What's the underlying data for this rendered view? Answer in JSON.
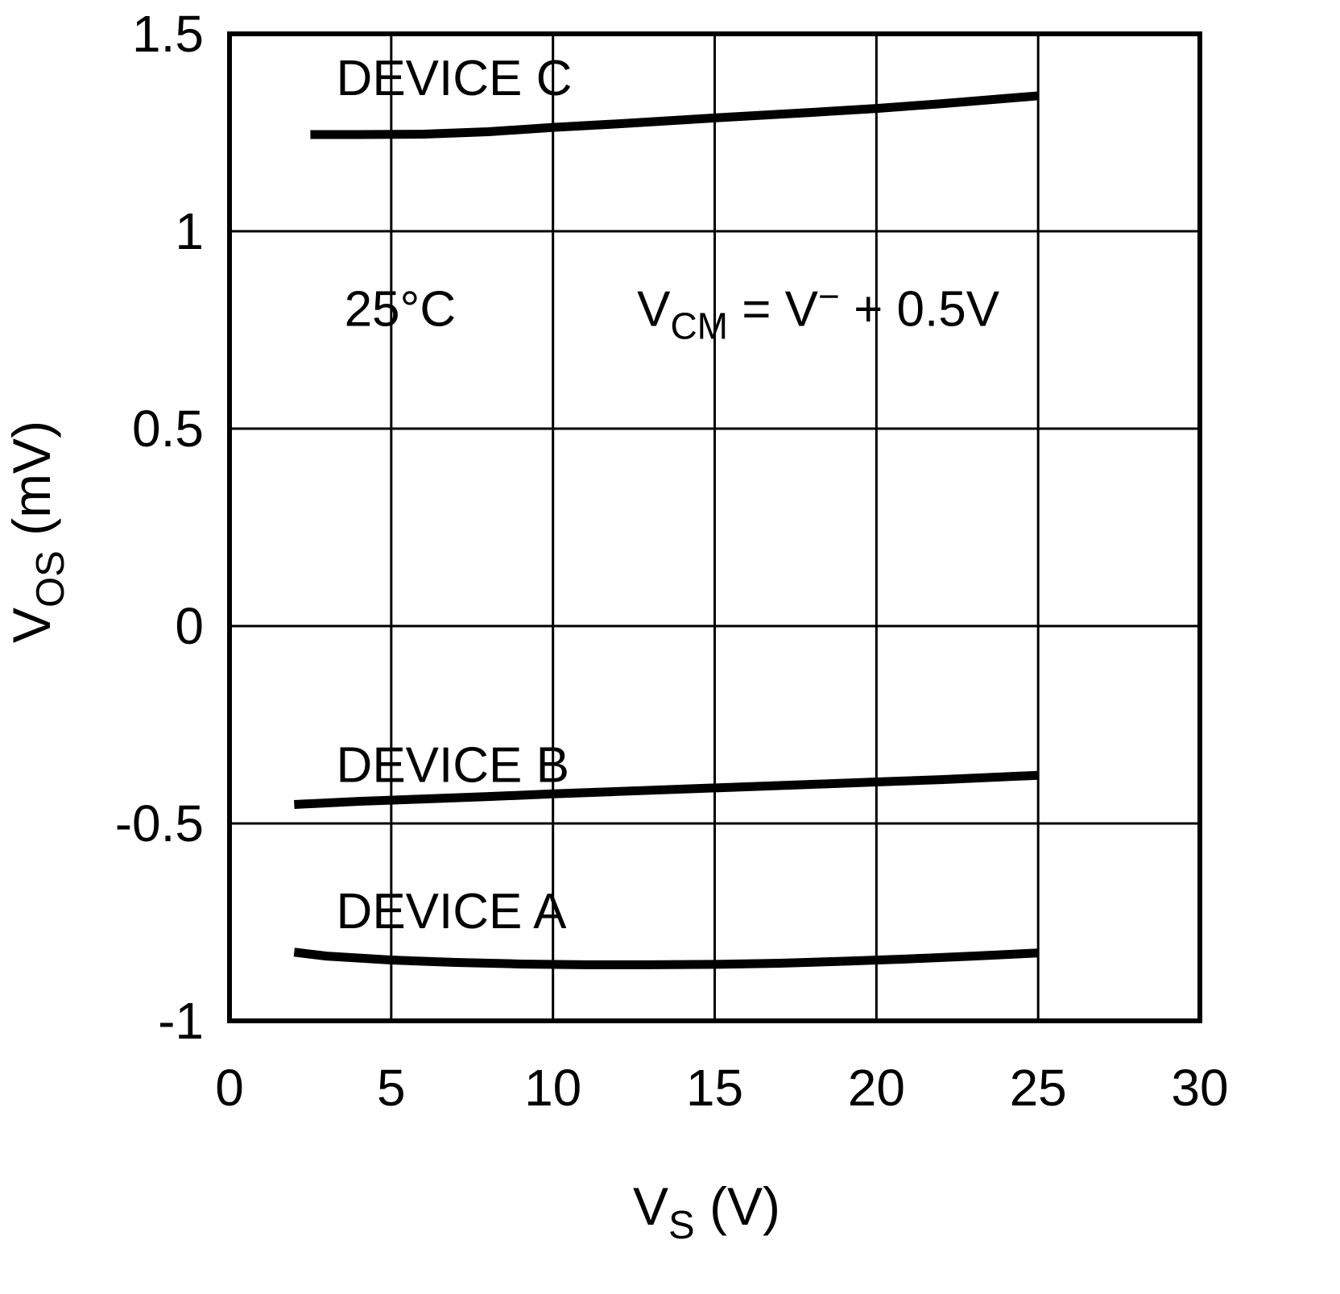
{
  "chart_data": {
    "type": "line",
    "title": "",
    "xlabel": "VS (V)",
    "xlabel_parts": [
      {
        "t": "V"
      },
      {
        "t": "S",
        "sub": true
      },
      {
        "t": " (V)"
      }
    ],
    "ylabel": "VOS (mV)",
    "ylabel_parts": [
      {
        "t": "V"
      },
      {
        "t": "OS",
        "sub": true
      },
      {
        "t": " (mV)"
      }
    ],
    "xlim": [
      0,
      30
    ],
    "ylim": [
      -1,
      1.5
    ],
    "xticks": [
      0,
      5,
      10,
      15,
      20,
      25,
      30
    ],
    "xtick_labels": [
      "0",
      "5",
      "10",
      "15",
      "20",
      "25",
      "30"
    ],
    "yticks": [
      -1,
      -0.5,
      0,
      0.5,
      1,
      1.5
    ],
    "ytick_labels": [
      "-1",
      "-0.5",
      "0",
      "0.5",
      "1",
      "1.5"
    ],
    "grid": true,
    "legend_position": "inline-labels",
    "colors": {
      "line": "#000000",
      "grid": "#000000",
      "axis": "#000000",
      "background": "#ffffff"
    },
    "annotations": [
      {
        "id": "temperature-note",
        "text": "25°C",
        "parts": [
          {
            "t": "25°C"
          }
        ],
        "x": 3.55,
        "y": 0.76
      },
      {
        "id": "vcm-condition-note",
        "text": "VCM = V− + 0.5V",
        "parts": [
          {
            "t": "V"
          },
          {
            "t": "CM",
            "sub": true
          },
          {
            "t": " = V"
          },
          {
            "t": "−",
            "sup": true
          },
          {
            "t": " + 0.5V"
          }
        ],
        "x": 12.6,
        "y": 0.76
      }
    ],
    "series": [
      {
        "name": "DEVICE C",
        "label_x": 3.3,
        "label_y": 1.345,
        "points": [
          [
            2.5,
            1.245
          ],
          [
            4,
            1.245
          ],
          [
            6,
            1.246
          ],
          [
            8,
            1.252
          ],
          [
            10,
            1.263
          ],
          [
            12,
            1.272
          ],
          [
            15,
            1.287
          ],
          [
            18,
            1.301
          ],
          [
            20,
            1.311
          ],
          [
            22,
            1.323
          ],
          [
            25,
            1.343
          ]
        ]
      },
      {
        "name": "DEVICE B",
        "label_x": 3.3,
        "label_y": -0.395,
        "points": [
          [
            2,
            -0.452
          ],
          [
            4,
            -0.444
          ],
          [
            6,
            -0.438
          ],
          [
            8,
            -0.432
          ],
          [
            10,
            -0.425
          ],
          [
            12,
            -0.419
          ],
          [
            15,
            -0.41
          ],
          [
            18,
            -0.401
          ],
          [
            20,
            -0.395
          ],
          [
            22,
            -0.389
          ],
          [
            25,
            -0.378
          ]
        ]
      },
      {
        "name": "DEVICE A",
        "label_x": 3.3,
        "label_y": -0.765,
        "points": [
          [
            2,
            -0.826
          ],
          [
            3,
            -0.836
          ],
          [
            5,
            -0.846
          ],
          [
            7,
            -0.852
          ],
          [
            9,
            -0.856
          ],
          [
            11,
            -0.858
          ],
          [
            13,
            -0.858
          ],
          [
            15,
            -0.857
          ],
          [
            17,
            -0.854
          ],
          [
            19,
            -0.849
          ],
          [
            21,
            -0.843
          ],
          [
            23,
            -0.836
          ],
          [
            25,
            -0.828
          ]
        ]
      }
    ]
  }
}
